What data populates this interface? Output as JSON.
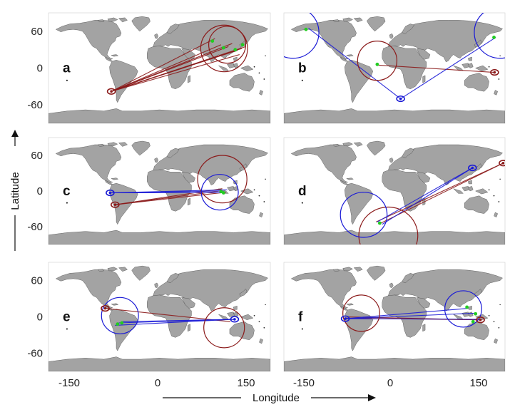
{
  "figure": {
    "y_axis_title": "Latitude",
    "x_axis_title": "Longitude",
    "y_ticks": [
      "60",
      "0",
      "-60"
    ],
    "x_ticks": [
      "-150",
      "0",
      "150"
    ]
  },
  "map_style": {
    "ocean": "#ffffff",
    "land": "#a3a3a3",
    "coast": "#444444",
    "red": "#8b1a1a",
    "blue": "#1a1ad6",
    "green": "#22cc22",
    "black_islands": "#111111"
  },
  "panels": [
    {
      "label": "a",
      "red_origin": [
        -78,
        -38
      ],
      "red_targets": [
        [
          90,
          48
        ],
        [
          100,
          38
        ],
        [
          112,
          35
        ],
        [
          118,
          40
        ],
        [
          124,
          28
        ],
        [
          130,
          22
        ],
        [
          134,
          32
        ],
        [
          140,
          35
        ]
      ],
      "red_circles": [
        {
          "lon": 105,
          "lat": 32,
          "r_deg": 38
        },
        {
          "lon": 110,
          "lat": 38,
          "r_deg": 30
        }
      ],
      "blue_origin": null,
      "blue_targets": [],
      "blue_circles": [],
      "green_points": [
        [
          86,
          44
        ],
        [
          104,
          33
        ],
        [
          123,
          30
        ],
        [
          135,
          38
        ]
      ]
    },
    {
      "label": "b",
      "red_origin": [
        163,
        -7
      ],
      "red_targets": [
        [
          -30,
          5
        ]
      ],
      "red_circles": [
        {
          "lon": -28,
          "lat": 12,
          "r_deg": 32
        }
      ],
      "blue_origin": [
        10,
        -50
      ],
      "blue_targets": [
        [
          -140,
          65
        ],
        [
          165,
          50
        ]
      ],
      "blue_circles": [
        {
          "lon": -165,
          "lat": 58,
          "r_deg": 42
        },
        {
          "lon": 172,
          "lat": 58,
          "r_deg": 42
        }
      ],
      "green_points": [
        [
          -144,
          63
        ],
        [
          162,
          50
        ],
        [
          -28,
          6
        ]
      ]
    },
    {
      "label": "c",
      "red_origin": [
        -72,
        -23
      ],
      "red_targets": [
        [
          98,
          0
        ],
        [
          102,
          4
        ],
        [
          108,
          -2
        ]
      ],
      "red_circles": [
        {
          "lon": 102,
          "lat": 20,
          "r_deg": 40
        }
      ],
      "blue_origin": [
        -80,
        -3
      ],
      "blue_targets": [
        [
          98,
          0
        ],
        [
          102,
          -3
        ],
        [
          110,
          2
        ]
      ],
      "blue_circles": [
        {
          "lon": 98,
          "lat": -2,
          "r_deg": 30
        }
      ],
      "green_points": [
        [
          100,
          -1
        ],
        [
          104,
          -3
        ]
      ]
    },
    {
      "label": "d",
      "red_origin": [
        177,
        47
      ],
      "red_targets": [
        [
          -30,
          -52
        ],
        [
          -22,
          -54
        ]
      ],
      "red_circles": [
        {
          "lon": -10,
          "lat": -75,
          "r_deg": 48
        }
      ],
      "blue_origin": [
        127,
        39
      ],
      "blue_targets": [
        [
          -28,
          -52
        ],
        [
          -20,
          -56
        ]
      ],
      "blue_circles": [
        {
          "lon": -50,
          "lat": -40,
          "r_deg": 38
        }
      ],
      "green_points": [
        [
          -24,
          -54
        ]
      ]
    },
    {
      "label": "e",
      "red_origin": [
        -88,
        14
      ],
      "red_targets": [
        [
          115,
          -8
        ]
      ],
      "red_circles": [
        {
          "lon": 105,
          "lat": -18,
          "r_deg": 33
        }
      ],
      "blue_origin": [
        122,
        -4
      ],
      "blue_targets": [
        [
          -66,
          -10
        ],
        [
          -72,
          -14
        ],
        [
          -60,
          -8
        ]
      ],
      "blue_circles": [
        {
          "lon": -64,
          "lat": 2,
          "r_deg": 30
        }
      ],
      "green_points": [
        [
          -68,
          -12
        ],
        [
          -61,
          -10
        ]
      ]
    },
    {
      "label": "f",
      "red_origin": [
        140,
        -5
      ],
      "red_targets": [
        [
          -82,
          -2
        ],
        [
          -76,
          0
        ]
      ],
      "red_circles": [
        {
          "lon": -54,
          "lat": 6,
          "r_deg": 30
        }
      ],
      "blue_origin": [
        -80,
        -3
      ],
      "blue_targets": [
        [
          120,
          14
        ],
        [
          130,
          6
        ],
        [
          134,
          -4
        ]
      ],
      "blue_circles": [
        {
          "lon": 112,
          "lat": 13,
          "r_deg": 30
        }
      ],
      "green_points": [
        [
          118,
          16
        ],
        [
          132,
          5
        ],
        [
          128,
          -8
        ]
      ]
    }
  ]
}
